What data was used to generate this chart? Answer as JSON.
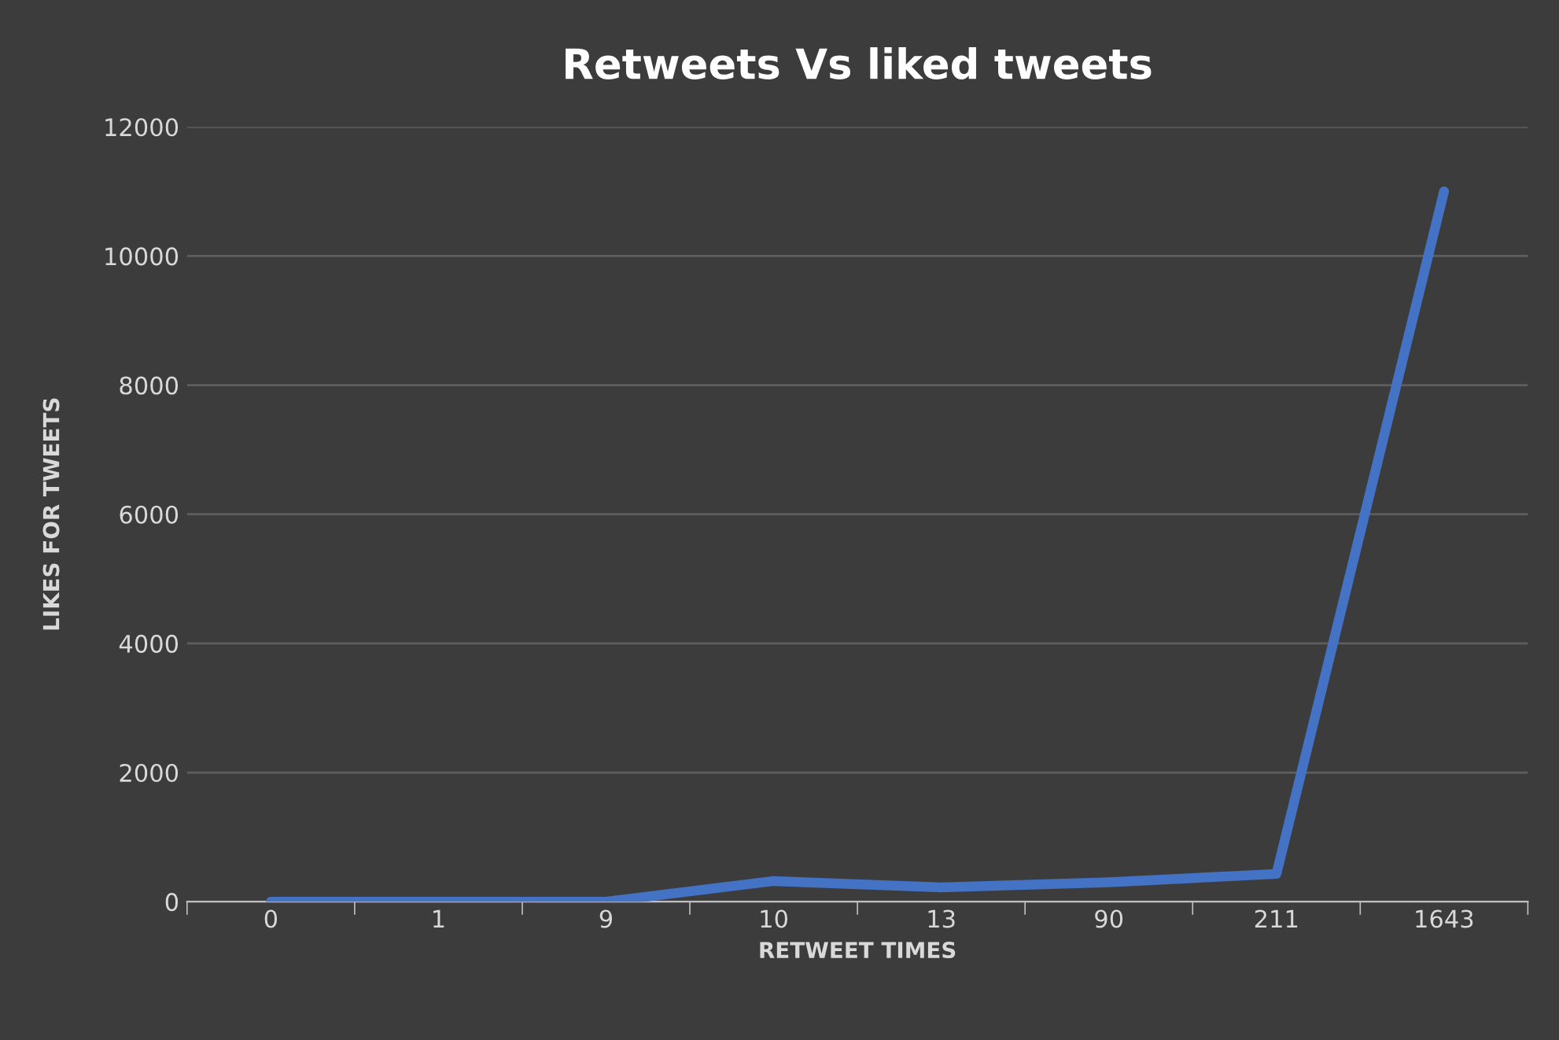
{
  "chart_data": {
    "type": "line",
    "title": "Retweets Vs liked tweets",
    "xlabel": "RETWEET TIMES",
    "ylabel": "LIKES FOR TWEETS",
    "categories": [
      "0",
      "1",
      "9",
      "10",
      "13",
      "90",
      "211",
      "1643"
    ],
    "series": [
      {
        "color": "#4472c4",
        "values": [
          0,
          0,
          0,
          320,
          220,
          300,
          430,
          11000
        ]
      }
    ],
    "ylim": [
      0,
      12000
    ],
    "yticks": [
      0,
      2000,
      4000,
      6000,
      8000,
      10000,
      12000
    ],
    "grid": "y",
    "marker": "none",
    "line_style": "solid",
    "legend": false
  }
}
